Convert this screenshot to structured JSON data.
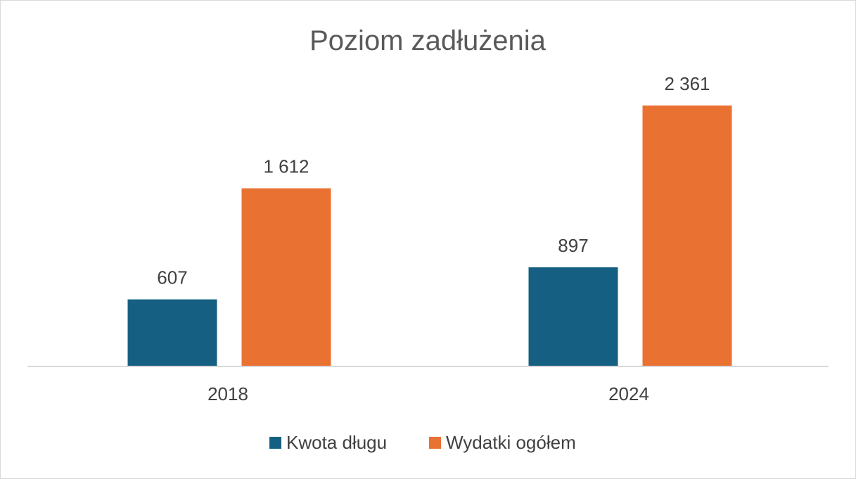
{
  "chart_data": {
    "type": "bar",
    "title": "Poziom zadłużenia",
    "categories": [
      "2018",
      "2024"
    ],
    "series": [
      {
        "name": "Kwota długu",
        "values": [
          607,
          897
        ],
        "labels": [
          "607",
          "897"
        ],
        "color": "#156082"
      },
      {
        "name": "Wydatki ogółem",
        "values": [
          1612,
          2361
        ],
        "labels": [
          "1 612",
          "2 361"
        ],
        "color": "#E97132"
      }
    ],
    "ylim": [
      0,
      2500
    ],
    "grid": false,
    "legend_position": "bottom"
  }
}
